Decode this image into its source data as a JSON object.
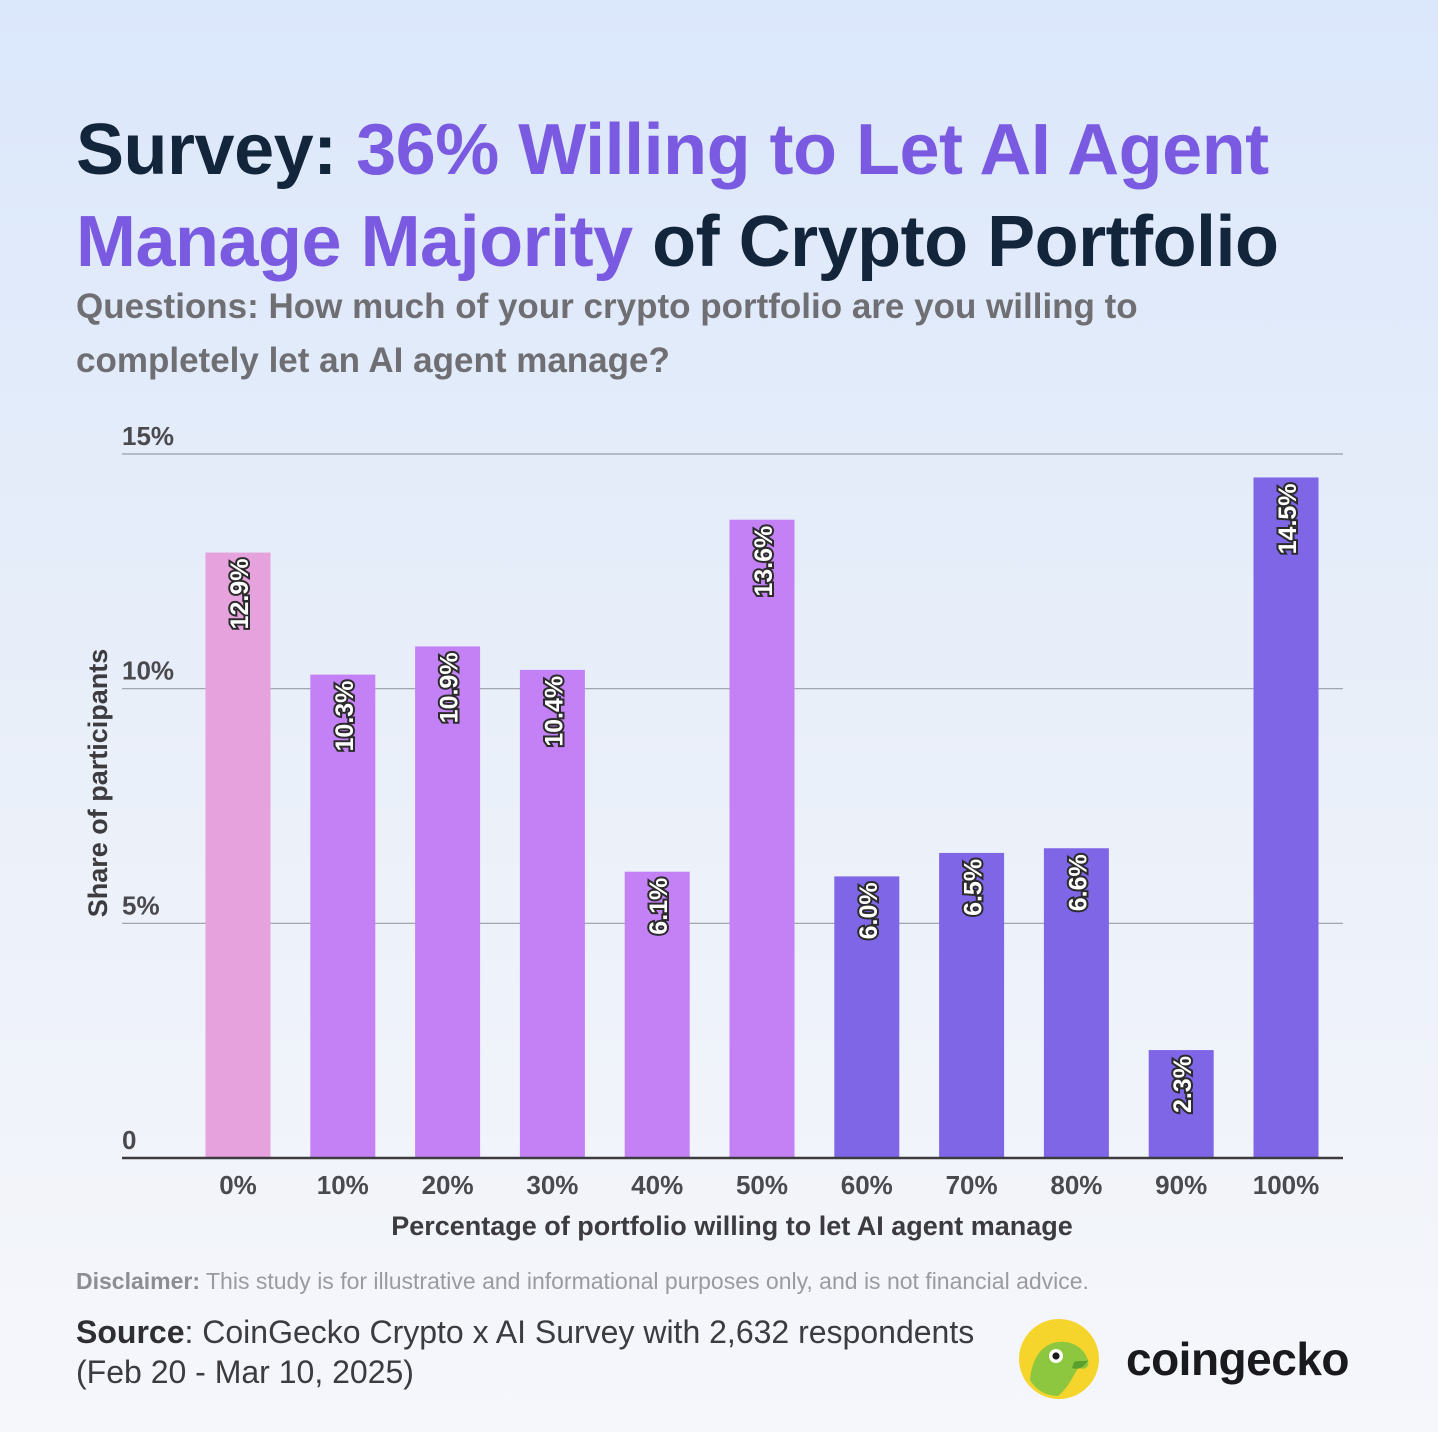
{
  "header": {
    "title_prefix": "Survey: ",
    "title_accent": "36% Willing to Let AI Agent Manage Majority",
    "title_suffix": " of Crypto Portfolio",
    "question": "Questions: How much of your crypto portfolio are you willing to completely let an AI agent manage?"
  },
  "chart_data": {
    "type": "bar",
    "categories": [
      "0%",
      "10%",
      "20%",
      "30%",
      "40%",
      "50%",
      "60%",
      "70%",
      "80%",
      "90%",
      "100%"
    ],
    "values": [
      12.9,
      10.3,
      10.9,
      10.4,
      6.1,
      13.6,
      6.0,
      6.5,
      6.6,
      2.3,
      14.5
    ],
    "data_labels": [
      "12.9%",
      "10.3%",
      "10.9%",
      "10.4%",
      "6.1%",
      "13.6%",
      "6.0%",
      "6.5%",
      "6.6%",
      "2.3%",
      "14.5%"
    ],
    "bar_colors": [
      "#e6a2dc",
      "#c481f5",
      "#c481f5",
      "#c481f5",
      "#c481f5",
      "#c481f5",
      "#7f66e6",
      "#7f66e6",
      "#7f66e6",
      "#7f66e6",
      "#7f66e6"
    ],
    "xlabel": "Percentage of portfolio willing to let AI agent manage",
    "ylabel": "Share of participants",
    "ylim": [
      0,
      15
    ],
    "yticks": [
      0,
      5,
      10,
      15
    ],
    "ytick_labels": [
      "0",
      "5%",
      "10%",
      "15%"
    ],
    "grid": true,
    "legend": false
  },
  "footer": {
    "disclaimer_label": "Disclaimer:",
    "disclaimer_text": " This study is for illustrative and informational purposes only, and is not financial advice.",
    "source_label": "Source",
    "source_text": ": CoinGecko Crypto x AI Survey with 2,632 respondents (Feb 20 - Mar 10, 2025)",
    "brand": "coingecko",
    "brand_icon": "gecko-logo-icon"
  },
  "colors": {
    "title_dark": "#13253a",
    "title_accent": "#7a5ae0",
    "gridline": "#9a9ca6"
  }
}
